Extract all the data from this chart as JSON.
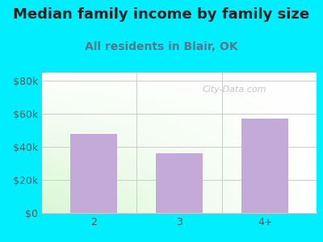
{
  "title": "Median family income by family size",
  "subtitle": "All residents in Blair, OK",
  "categories": [
    "2",
    "3",
    "4+"
  ],
  "values": [
    48000,
    36000,
    57000
  ],
  "bar_color": "#c4aad8",
  "background_color": "#00eeff",
  "title_fontsize": 13,
  "subtitle_fontsize": 10,
  "ylabel_ticks": [
    0,
    20000,
    40000,
    60000,
    80000
  ],
  "ylabel_labels": [
    "$0",
    "$20k",
    "$40k",
    "$60k",
    "$80k"
  ],
  "ylim": [
    0,
    85000
  ],
  "title_color": "#222222",
  "subtitle_color": "#557788",
  "tick_color": "#555555",
  "grid_color": "#cccccc",
  "watermark_text": "City-Data.com",
  "watermark_color": "#bbbbbb",
  "plot_bg_topleft": "#e8f5e2",
  "plot_bg_topright": "#f8fffc",
  "plot_bg_bottomleft": "#d8f0d0",
  "plot_bg_bottomright": "#ffffff"
}
